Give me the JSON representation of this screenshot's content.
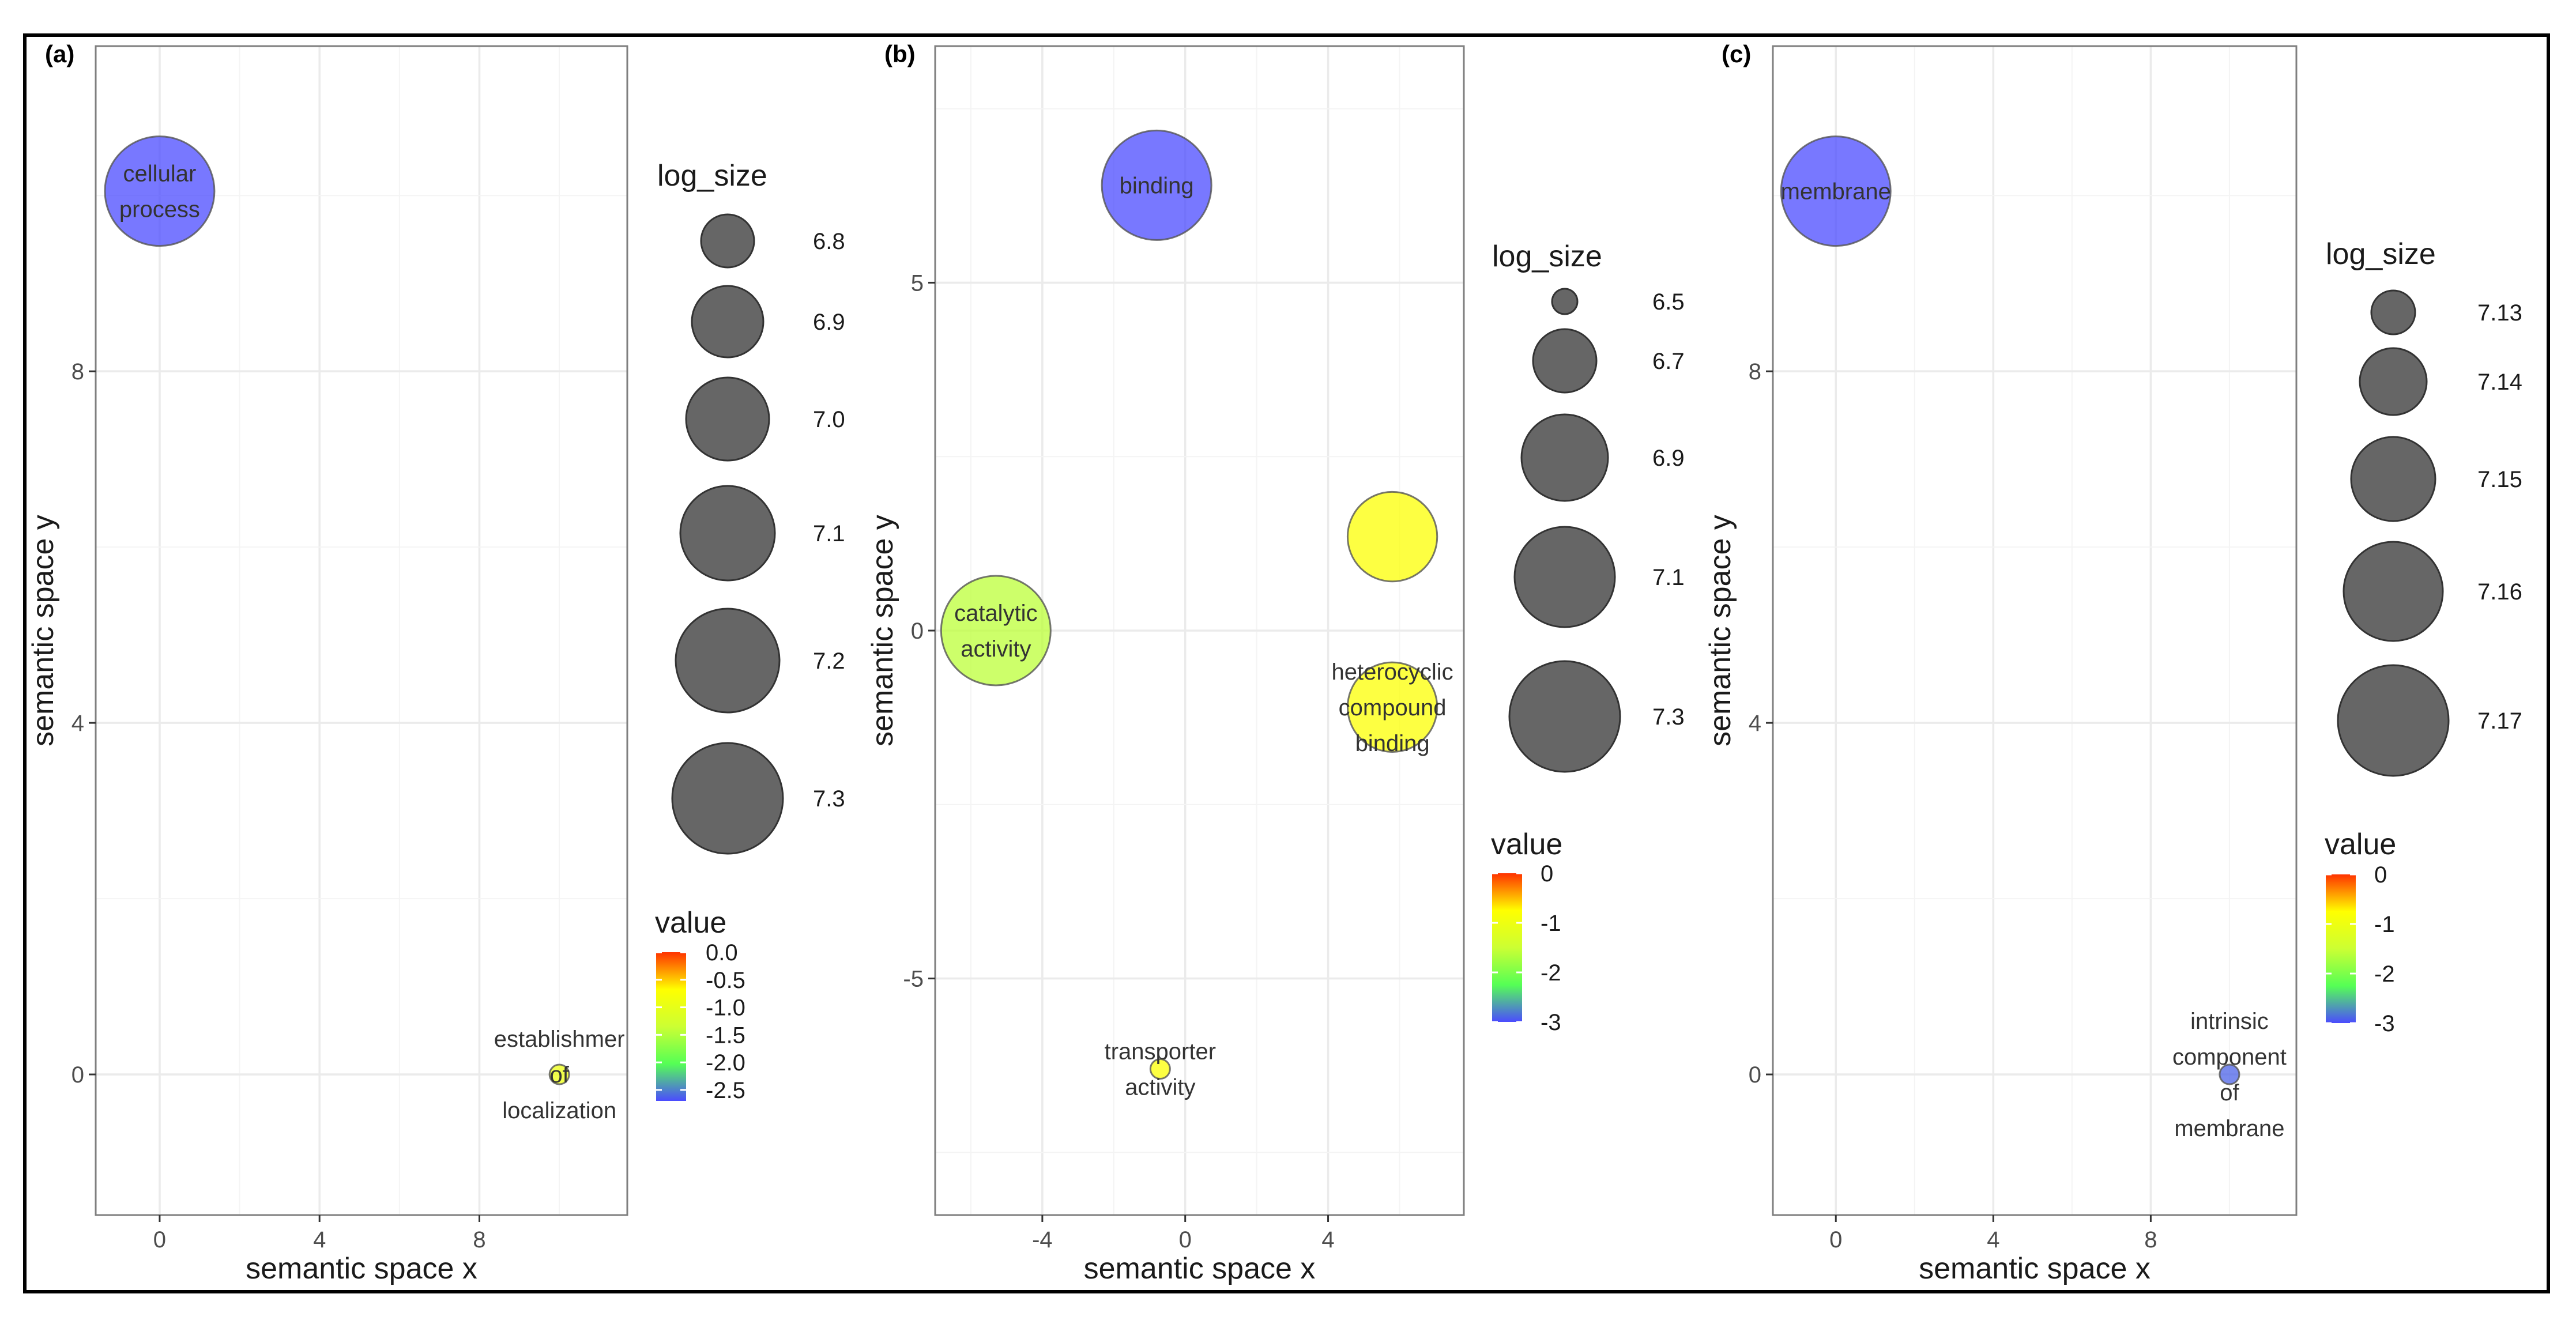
{
  "chart_data": [
    {
      "type": "scatter",
      "tag": "(a)",
      "xlabel": "semantic space x",
      "ylabel": "semantic space y",
      "xlim": [
        -1.6,
        11.7
      ],
      "ylim": [
        -1.6,
        11.7
      ],
      "xticks": [
        0,
        4,
        8
      ],
      "yticks": [
        0,
        4,
        8
      ],
      "points": [
        {
          "id": "cellular-process",
          "x": 0,
          "y": 10.05,
          "log_size": 7.3,
          "value": -2.9,
          "lines": [
            "cellular",
            "process"
          ]
        },
        {
          "id": "establishment-of-localization",
          "x": 10.0,
          "y": 0,
          "log_size": 6.5,
          "value": -0.9,
          "lines": [
            "establishmer",
            "of",
            "localization"
          ]
        }
      ],
      "size_legend": {
        "title": "log_size",
        "labels": [
          "6.8",
          "6.9",
          "7.0",
          "7.1",
          "7.2",
          "7.3"
        ]
      },
      "color_legend": {
        "title": "value",
        "min": -2.7,
        "max": 0.0,
        "labels": [
          "0.0",
          "-0.5",
          "-1.0",
          "-1.5",
          "-2.0",
          "-2.5"
        ]
      }
    },
    {
      "type": "scatter",
      "tag": "(b)",
      "xlabel": "semantic space x",
      "ylabel": "semantic space y",
      "xlim": [
        -7.0,
        7.8
      ],
      "ylim": [
        -8.4,
        8.4
      ],
      "xticks": [
        -4,
        0,
        4
      ],
      "yticks": [
        -5,
        0,
        5
      ],
      "points": [
        {
          "id": "binding",
          "x": -0.8,
          "y": 6.4,
          "log_size": 7.3,
          "value": -3.0,
          "lines": [
            "binding"
          ]
        },
        {
          "id": "catalytic-activity",
          "x": -5.3,
          "y": 0.0,
          "log_size": 7.3,
          "value": -1.6,
          "lines": [
            "catalytic",
            "activity"
          ]
        },
        {
          "id": "unlabeled-binding",
          "x": 5.8,
          "y": 1.35,
          "log_size": 7.1,
          "value": -0.8,
          "lines": []
        },
        {
          "id": "heterocyclic-compound-binding",
          "x": 5.8,
          "y": -1.1,
          "log_size": 7.1,
          "value": -0.8,
          "lines": [
            "heterocyclic",
            "compound",
            "binding"
          ]
        },
        {
          "id": "transporter-activity",
          "x": -0.7,
          "y": -6.3,
          "log_size": 6.4,
          "value": -0.8,
          "lines": [
            "transporter",
            "activity"
          ]
        }
      ],
      "size_legend": {
        "title": "log_size",
        "labels": [
          "6.5",
          "6.7",
          "6.9",
          "7.1",
          "7.3"
        ]
      },
      "color_legend": {
        "title": "value",
        "min": -3.0,
        "max": 0.0,
        "labels": [
          "0",
          "-1",
          "-2",
          "-3"
        ]
      }
    },
    {
      "type": "scatter",
      "tag": "(c)",
      "xlabel": "semantic space x",
      "ylabel": "semantic space y",
      "xlim": [
        -1.6,
        11.7
      ],
      "ylim": [
        -1.6,
        11.7
      ],
      "xticks": [
        0,
        4,
        8
      ],
      "yticks": [
        0,
        4,
        8
      ],
      "points": [
        {
          "id": "membrane",
          "x": 0,
          "y": 10.05,
          "log_size": 7.17,
          "value": -3.0,
          "lines": [
            "membrane"
          ]
        },
        {
          "id": "intrinsic-component-of-membrane",
          "x": 10.0,
          "y": 0,
          "log_size": 7.11,
          "value": -2.9,
          "lines": [
            "intrinsic",
            "component",
            "of",
            "membrane"
          ]
        }
      ],
      "size_legend": {
        "title": "log_size",
        "labels": [
          "7.13",
          "7.14",
          "7.15",
          "7.16",
          "7.17"
        ]
      },
      "color_legend": {
        "title": "value",
        "min": -3.0,
        "max": 0.0,
        "labels": [
          "0",
          "-1",
          "-2",
          "-3"
        ]
      }
    }
  ],
  "colors": {
    "scale": [
      "#4b4bff",
      "#55ff55",
      "#ccff33",
      "#ffff00",
      "#ff3300"
    ],
    "legend_bubble": "#666666"
  }
}
